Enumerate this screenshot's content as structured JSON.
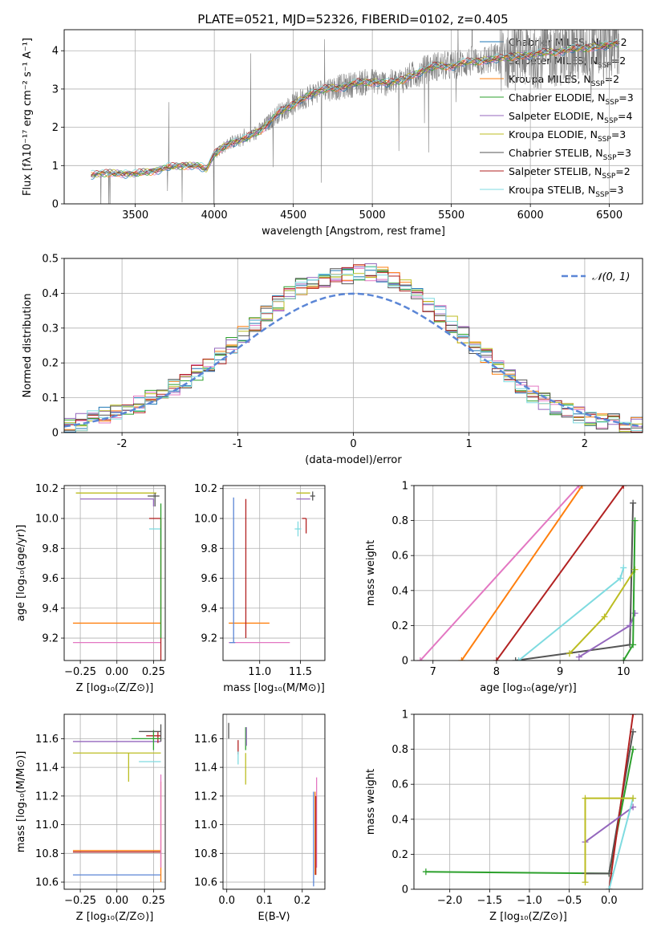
{
  "figure_title": "PLATE=0521, MJD=52326, FIBERID=0102, z=0.405",
  "legend_entries": [
    {
      "pre": "Chabrier MILES, N",
      "sub": "SSP",
      "post": "=2",
      "color": "#1f77b4"
    },
    {
      "pre": "Salpeter MILES, N",
      "sub": "SSP",
      "post": "=2",
      "color": "#e377c2"
    },
    {
      "pre": "Kroupa MILES, N",
      "sub": "SSP",
      "post": "=2",
      "color": "#ff7f0e"
    },
    {
      "pre": "Chabrier ELODIE, N",
      "sub": "SSP",
      "post": "=3",
      "color": "#2ca02c"
    },
    {
      "pre": "Salpeter ELODIE, N",
      "sub": "SSP",
      "post": "=4",
      "color": "#9467bd"
    },
    {
      "pre": "Kroupa ELODIE, N",
      "sub": "SSP",
      "post": "=3",
      "color": "#bcbd22"
    },
    {
      "pre": "Chabrier STELIB, N",
      "sub": "SSP",
      "post": "=3",
      "color": "#555555"
    },
    {
      "pre": "Salpeter STELIB, N",
      "sub": "SSP",
      "post": "=2",
      "color": "#b22222"
    },
    {
      "pre": "Kroupa STELIB, N",
      "sub": "SSP",
      "post": "=3",
      "color": "#7fdbe0"
    }
  ],
  "normal_legend": "𝒩(0, 1)",
  "chart_data": [
    {
      "id": "spectrum",
      "type": "line",
      "xlabel": "wavelength [Angstrom, rest frame]",
      "ylabel": "Flux [fλ10⁻¹⁷ erg cm⁻² s⁻¹ A⁻¹]",
      "xlim": [
        3050,
        6710
      ],
      "ylim": [
        0,
        4.55
      ],
      "xticks": [
        3500,
        4000,
        4500,
        5000,
        5500,
        6000,
        6500
      ],
      "yticks": [
        0,
        1,
        2,
        3,
        4
      ],
      "continuum_x": [
        3220,
        3300,
        3400,
        3500,
        3600,
        3700,
        3800,
        3900,
        3950,
        4000,
        4100,
        4200,
        4300,
        4400,
        4500,
        4600,
        4700,
        4800,
        4900,
        5000,
        5100,
        5200,
        5300,
        5400,
        5500,
        5600,
        5700,
        5800,
        5900,
        6000,
        6100,
        6200,
        6300,
        6400,
        6500,
        6560
      ],
      "continuum_y": [
        0.75,
        0.8,
        0.8,
        0.78,
        0.85,
        0.95,
        1.0,
        1.0,
        0.9,
        1.3,
        1.6,
        1.7,
        1.95,
        2.35,
        2.6,
        2.85,
        3.0,
        3.05,
        3.15,
        3.2,
        3.15,
        3.25,
        3.45,
        3.6,
        3.6,
        3.7,
        3.75,
        3.8,
        3.85,
        3.9,
        3.95,
        4.0,
        4.05,
        4.1,
        4.15,
        4.2
      ],
      "data_color": "#808080"
    },
    {
      "id": "residual_hist",
      "type": "histogram",
      "xlabel": "(data-model)/error",
      "ylabel": "Normed distribution",
      "xlim": [
        -2.5,
        2.5
      ],
      "ylim": [
        0,
        0.5
      ],
      "xticks": [
        -2,
        -1,
        0,
        1,
        2
      ],
      "yticks": [
        0,
        0.1,
        0.2,
        0.3,
        0.4,
        0.5
      ],
      "bin_width": 0.1,
      "envelope": [
        0.02,
        0.03,
        0.04,
        0.05,
        0.06,
        0.07,
        0.08,
        0.1,
        0.11,
        0.13,
        0.15,
        0.17,
        0.19,
        0.22,
        0.25,
        0.28,
        0.31,
        0.34,
        0.37,
        0.4,
        0.42,
        0.43,
        0.44,
        0.45,
        0.45,
        0.46,
        0.46,
        0.45,
        0.44,
        0.42,
        0.4,
        0.37,
        0.34,
        0.31,
        0.28,
        0.25,
        0.22,
        0.19,
        0.16,
        0.13,
        0.11,
        0.09,
        0.07,
        0.06,
        0.05,
        0.04,
        0.03,
        0.03,
        0.02,
        0.02
      ],
      "normal_color": "#5b86d6"
    },
    {
      "id": "age_vs_Z",
      "type": "scatter_errorbar",
      "xlabel": "Z [log₁₀(Z/Z⊙)]",
      "ylabel": "age  [log₁₀(age/yr)]",
      "xlim": [
        -0.36,
        0.33
      ],
      "ylim": [
        9.05,
        10.22
      ],
      "xticks": [
        -0.25,
        0.0,
        0.25
      ],
      "xticklabels": [
        "−0.25",
        "0.00",
        "0.25"
      ],
      "yticks": [
        9.2,
        9.4,
        9.6,
        9.8,
        10.0,
        10.2
      ],
      "yticklabels": [
        "9.2",
        "9.4",
        "9.6",
        "9.8",
        "10.0",
        "10.2"
      ],
      "points": [
        {
          "x": 0.3,
          "y": 9.3,
          "xerr": [
            0.6,
            0
          ],
          "yerr": [
            0,
            0
          ],
          "color": "#ff7f0e"
        },
        {
          "x": 0.3,
          "y": 9.17,
          "xerr": [
            0.6,
            0
          ],
          "yerr": [
            0,
            0
          ],
          "color": "#e377c2"
        },
        {
          "x": 0.3,
          "y": 10.0,
          "xerr": [
            0.08,
            0
          ],
          "yerr": [
            0.95,
            0.0
          ],
          "color": "#b22222"
        },
        {
          "x": 0.25,
          "y": 10.13,
          "xerr": [
            0.5,
            0
          ],
          "yerr": [
            0.05,
            0
          ],
          "color": "#9467bd"
        },
        {
          "x": 0.27,
          "y": 10.17,
          "xerr": [
            0.55,
            0
          ],
          "yerr": [
            0,
            0
          ],
          "color": "#bcbd22"
        },
        {
          "x": 0.26,
          "y": 10.15,
          "xerr": [
            0.05,
            0.03
          ],
          "yerr": [
            0.07,
            0.02
          ],
          "color": "#555555"
        },
        {
          "x": 0.3,
          "y": 9.93,
          "xerr": [
            0.08,
            0
          ],
          "yerr": [
            0.08,
            0
          ],
          "color": "#7fdbe0"
        },
        {
          "x": 0.3,
          "y": 9.6,
          "xerr": [
            0,
            0
          ],
          "yerr": [
            0.4,
            0.5
          ],
          "color": "#2ca02c"
        }
      ]
    },
    {
      "id": "age_vs_mass",
      "type": "scatter_errorbar",
      "xlabel": "mass [log₁₀(M/M⊙)]",
      "ylabel": "",
      "xlim": [
        10.55,
        11.8
      ],
      "ylim": [
        9.05,
        10.22
      ],
      "xticks": [
        11.0,
        11.5
      ],
      "xticklabels": [
        "11.0",
        "11.5"
      ],
      "yticks": [
        9.2,
        9.4,
        9.6,
        9.8,
        10.0,
        10.2
      ],
      "yticklabels": [
        "9.2",
        "9.4",
        "9.6",
        "9.8",
        "10.0",
        "10.2"
      ],
      "points": [
        {
          "x": 10.82,
          "y": 9.3,
          "xerr": [
            0.2,
            0.3
          ],
          "yerr": [
            0,
            0
          ],
          "color": "#ff7f0e"
        },
        {
          "x": 10.82,
          "y": 9.17,
          "xerr": [
            0.2,
            0.55
          ],
          "yerr": [
            0,
            0
          ],
          "color": "#e377c2"
        },
        {
          "x": 10.68,
          "y": 9.17,
          "xerr": [
            0.05,
            0.02
          ],
          "yerr": [
            0,
            0.97
          ],
          "color": "#5b86d6"
        },
        {
          "x": 10.83,
          "y": 9.2,
          "xerr": [
            0,
            0
          ],
          "yerr": [
            0,
            0.93
          ],
          "color": "#b22222"
        },
        {
          "x": 11.6,
          "y": 10.13,
          "xerr": [
            0.15,
            0.02
          ],
          "yerr": [
            0,
            0
          ],
          "color": "#9467bd"
        },
        {
          "x": 11.6,
          "y": 10.17,
          "xerr": [
            0.15,
            0.02
          ],
          "yerr": [
            0,
            0
          ],
          "color": "#bcbd22"
        },
        {
          "x": 11.65,
          "y": 10.15,
          "xerr": [
            0.03,
            0.03
          ],
          "yerr": [
            0.03,
            0.03
          ],
          "color": "#555555"
        },
        {
          "x": 11.47,
          "y": 9.93,
          "xerr": [
            0.04,
            0.04
          ],
          "yerr": [
            0.05,
            0.05
          ],
          "color": "#7fdbe0"
        },
        {
          "x": 11.57,
          "y": 10.0,
          "xerr": [
            0.05,
            0.0
          ],
          "yerr": [
            0.1,
            0.0
          ],
          "color": "#b22222"
        }
      ]
    },
    {
      "id": "weight_vs_age",
      "type": "line",
      "xlabel": "age  [log₁₀(age/yr)]",
      "ylabel": "mass weight",
      "xlim": [
        6.7,
        10.3
      ],
      "ylim": [
        0,
        1.0
      ],
      "xticks": [
        7,
        8,
        9,
        10
      ],
      "yticks": [
        0,
        0.2,
        0.4,
        0.6,
        0.8,
        1.0
      ],
      "series": [
        {
          "color": "#e377c2",
          "x": [
            6.8,
            9.3
          ],
          "y": [
            0,
            1.0
          ]
        },
        {
          "color": "#ff7f0e",
          "x": [
            7.45,
            9.35
          ],
          "y": [
            0,
            1.0
          ]
        },
        {
          "color": "#b22222",
          "x": [
            8.0,
            10.0
          ],
          "y": [
            0,
            1.0
          ]
        },
        {
          "color": "#555555",
          "x": [
            8.3,
            10.1,
            10.15
          ],
          "y": [
            0,
            0.09,
            0.9
          ]
        },
        {
          "color": "#7fdbe0",
          "x": [
            8.35,
            9.95,
            10.0
          ],
          "y": [
            0,
            0.47,
            0.53
          ]
        },
        {
          "color": "#bcbd22",
          "x": [
            9.15,
            9.7,
            10.18
          ],
          "y": [
            0.04,
            0.25,
            0.52
          ]
        },
        {
          "color": "#9467bd",
          "x": [
            9.3,
            10.1,
            10.18
          ],
          "y": [
            0.02,
            0.2,
            0.27
          ]
        },
        {
          "color": "#2ca02c",
          "x": [
            10.0,
            10.15,
            10.18
          ],
          "y": [
            0,
            0.09,
            0.8
          ]
        }
      ]
    },
    {
      "id": "mass_vs_Z",
      "type": "scatter_errorbar",
      "xlabel": "Z [log₁₀(Z/Z⊙)]",
      "ylabel": "mass [log₁₀(M/M⊙)]",
      "xlim": [
        -0.36,
        0.33
      ],
      "ylim": [
        10.55,
        11.77
      ],
      "xticks": [
        -0.25,
        0.0,
        0.25
      ],
      "xticklabels": [
        "−0.25",
        "0.00",
        "0.25"
      ],
      "yticks": [
        10.6,
        10.8,
        11.0,
        11.2,
        11.4,
        11.6
      ],
      "yticklabels": [
        "10.6",
        "10.8",
        "11.0",
        "11.2",
        "11.4",
        "11.6"
      ],
      "points": [
        {
          "x": 0.3,
          "y": 10.82,
          "xerr": [
            0.6,
            0
          ],
          "yerr": [
            0,
            0
          ],
          "color": "#ff7f0e"
        },
        {
          "x": 0.3,
          "y": 10.81,
          "xerr": [
            0.6,
            0
          ],
          "yerr": [
            0,
            0
          ],
          "color": "#b22222"
        },
        {
          "x": 0.3,
          "y": 10.65,
          "xerr": [
            0.6,
            0
          ],
          "yerr": [
            0,
            0
          ],
          "color": "#5b86d6"
        },
        {
          "x": 0.3,
          "y": 11.58,
          "xerr": [
            0.6,
            0
          ],
          "yerr": [
            0,
            0
          ],
          "color": "#9467bd"
        },
        {
          "x": 0.3,
          "y": 11.5,
          "xerr": [
            0.6,
            0
          ],
          "yerr": [
            0,
            0
          ],
          "color": "#bcbd22"
        },
        {
          "x": 0.3,
          "y": 11.2,
          "xerr": [
            0,
            0
          ],
          "yerr": [
            0.6,
            0.1
          ],
          "color": "#ff7f0e"
        },
        {
          "x": 0.3,
          "y": 11.3,
          "xerr": [
            0,
            0
          ],
          "yerr": [
            0.6,
            0.05
          ],
          "color": "#e377c2"
        },
        {
          "x": 0.28,
          "y": 11.62,
          "xerr": [
            0.08,
            0.02
          ],
          "yerr": [
            0.05,
            0.03
          ],
          "color": "#b22222"
        },
        {
          "x": 0.25,
          "y": 11.6,
          "xerr": [
            0.15,
            0.05
          ],
          "yerr": [
            0.08,
            0.06
          ],
          "color": "#2ca02c"
        },
        {
          "x": 0.3,
          "y": 11.65,
          "xerr": [
            0.15,
            0
          ],
          "yerr": [
            0.07,
            0.05
          ],
          "color": "#555555"
        },
        {
          "x": 0.3,
          "y": 11.44,
          "xerr": [
            0.15,
            0
          ],
          "yerr": [
            0,
            0
          ],
          "color": "#7fdbe0"
        },
        {
          "x": 0.08,
          "y": 11.45,
          "xerr": [
            0,
            0
          ],
          "yerr": [
            0.15,
            0.05
          ],
          "color": "#bcbd22"
        }
      ]
    },
    {
      "id": "mass_vs_ebv",
      "type": "scatter_errorbar",
      "xlabel": "E(B-V)",
      "ylabel": "",
      "xlim": [
        -0.01,
        0.26
      ],
      "ylim": [
        10.55,
        11.77
      ],
      "xticks": [
        0.0,
        0.1,
        0.2
      ],
      "xticklabels": [
        "0.0",
        "0.1",
        "0.2"
      ],
      "yticks": [
        10.6,
        10.8,
        11.0,
        11.2,
        11.4,
        11.6
      ],
      "yticklabels": [
        "10.6",
        "10.8",
        "11.0",
        "11.2",
        "11.4",
        "11.6"
      ],
      "points": [
        {
          "x": 0.005,
          "y": 11.67,
          "xerr": [
            0,
            0
          ],
          "yerr": [
            0.07,
            0.04
          ],
          "color": "#555555"
        },
        {
          "x": 0.03,
          "y": 11.55,
          "xerr": [
            0,
            0
          ],
          "yerr": [
            0.06,
            0.04
          ],
          "color": "#b22222"
        },
        {
          "x": 0.03,
          "y": 11.47,
          "xerr": [
            0,
            0
          ],
          "yerr": [
            0.05,
            0.04
          ],
          "color": "#7fdbe0"
        },
        {
          "x": 0.05,
          "y": 11.6,
          "xerr": [
            0,
            0
          ],
          "yerr": [
            0.08,
            0.08
          ],
          "color": "#2ca02c"
        },
        {
          "x": 0.052,
          "y": 11.62,
          "xerr": [
            0,
            0
          ],
          "yerr": [
            0.07,
            0.06
          ],
          "color": "#9467bd"
        },
        {
          "x": 0.05,
          "y": 11.4,
          "xerr": [
            0,
            0
          ],
          "yerr": [
            0.12,
            0.1
          ],
          "color": "#bcbd22"
        },
        {
          "x": 0.23,
          "y": 10.9,
          "xerr": [
            0,
            0
          ],
          "yerr": [
            0.33,
            0.33
          ],
          "color": "#5b86d6"
        },
        {
          "x": 0.234,
          "y": 10.95,
          "xerr": [
            0,
            0
          ],
          "yerr": [
            0.3,
            0.28
          ],
          "color": "#ff7f0e"
        },
        {
          "x": 0.238,
          "y": 11.0,
          "xerr": [
            0,
            0
          ],
          "yerr": [
            0.3,
            0.33
          ],
          "color": "#e377c2"
        },
        {
          "x": 0.236,
          "y": 10.9,
          "xerr": [
            0,
            0
          ],
          "yerr": [
            0.25,
            0.3
          ],
          "color": "#b22222"
        }
      ]
    },
    {
      "id": "weight_vs_Z",
      "type": "line",
      "xlabel": "Z [log₁₀(Z/Z⊙)]",
      "ylabel": "mass weight",
      "xlim": [
        -2.45,
        0.42
      ],
      "ylim": [
        0,
        1.0
      ],
      "xticks": [
        -2.0,
        -1.5,
        -1.0,
        -0.5,
        0.0
      ],
      "xticklabels": [
        "−2.0",
        "−1.5",
        "−1.0",
        "−0.5",
        "0.0"
      ],
      "yticks": [
        0,
        0.2,
        0.4,
        0.6,
        0.8,
        1.0
      ],
      "series": [
        {
          "color": "#2ca02c",
          "x": [
            -2.3,
            0.0,
            0.3
          ],
          "y": [
            0.1,
            0.09,
            0.8
          ]
        },
        {
          "color": "#555555",
          "x": [
            -0.3,
            0.0,
            0.3
          ],
          "y": [
            0.09,
            0.09,
            0.9
          ]
        },
        {
          "color": "#b22222",
          "x": [
            0.0,
            0.3
          ],
          "y": [
            0.0,
            1.0
          ]
        },
        {
          "color": "#9467bd",
          "x": [
            -0.3,
            0.3
          ],
          "y": [
            0.27,
            0.47
          ]
        },
        {
          "color": "#7fdbe0",
          "x": [
            0.0,
            0.3
          ],
          "y": [
            0.0,
            0.52
          ]
        },
        {
          "color": "#bcbd22",
          "x": [
            -0.3,
            -0.3,
            0.3
          ],
          "y": [
            0.04,
            0.52,
            0.52
          ]
        }
      ]
    }
  ]
}
